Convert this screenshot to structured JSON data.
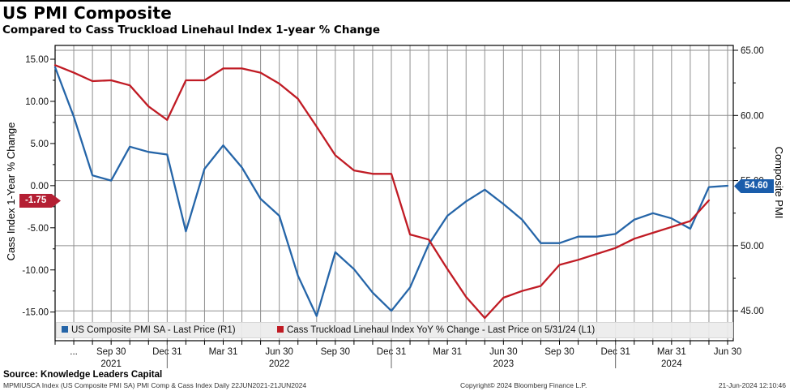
{
  "header": {
    "title": "US PMI Composite",
    "subtitle": "Compared to Cass Truckload Linehaul Index 1-year % Change"
  },
  "chart_data": {
    "type": "line",
    "x": [
      "Jun 2021",
      "Jul 2021",
      "Aug 2021",
      "Sep 2021",
      "Oct 2021",
      "Nov 2021",
      "Dec 2021",
      "Jan 2022",
      "Feb 2022",
      "Mar 2022",
      "Apr 2022",
      "May 2022",
      "Jun 2022",
      "Jul 2022",
      "Aug 2022",
      "Sep 2022",
      "Oct 2022",
      "Nov 2022",
      "Dec 2022",
      "Jan 2023",
      "Feb 2023",
      "Mar 2023",
      "Apr 2023",
      "May 2023",
      "Jun 2023",
      "Jul 2023",
      "Aug 2023",
      "Sep 2023",
      "Oct 2023",
      "Nov 2023",
      "Dec 2023",
      "Jan 2024",
      "Feb 2024",
      "Mar 2024",
      "Apr 2024",
      "May 2024",
      "Jun 2024"
    ],
    "series": [
      {
        "name": "US Composite PMI SA - Last Price (R1)",
        "axis": "right",
        "color": "#2565a8",
        "values": [
          63.7,
          59.9,
          55.4,
          55.0,
          57.6,
          57.2,
          57.0,
          51.1,
          55.9,
          57.7,
          56.0,
          53.6,
          52.3,
          47.7,
          44.6,
          49.5,
          48.2,
          46.4,
          45.0,
          46.8,
          50.1,
          52.3,
          53.4,
          54.3,
          53.2,
          52.0,
          50.2,
          50.2,
          50.7,
          50.7,
          50.9,
          52.0,
          52.5,
          52.1,
          51.3,
          54.5,
          54.6
        ]
      },
      {
        "name": "Cass Truckload Linehaul Index YoY % Change - Last Price on 5/31/24 (L1)",
        "axis": "left",
        "color": "#c01b24",
        "values": [
          14.3,
          13.4,
          12.4,
          12.5,
          11.9,
          9.4,
          7.8,
          12.5,
          12.5,
          13.9,
          13.9,
          13.4,
          12.1,
          10.3,
          7.0,
          3.6,
          1.8,
          1.4,
          1.4,
          -5.8,
          -6.4,
          -9.9,
          -13.2,
          -15.7,
          -13.3,
          -12.5,
          -11.9,
          -9.4,
          -8.8,
          -8.1,
          -7.4,
          -6.3,
          -5.6,
          -4.9,
          -4.2,
          -1.75
        ]
      }
    ],
    "left_axis": {
      "title": "Cass Index 1-Year % Change",
      "ticks": [
        {
          "value": 15,
          "label": "15.00"
        },
        {
          "value": 10,
          "label": "10.00"
        },
        {
          "value": 5,
          "label": "5.00"
        },
        {
          "value": 0,
          "label": "0.00"
        },
        {
          "value": -5,
          "label": "-5.00"
        },
        {
          "value": -10,
          "label": "-10.00"
        },
        {
          "value": -15,
          "label": "-15.00"
        }
      ],
      "minor_ticks": [
        12.5,
        7.5,
        2.5,
        -2.5,
        -7.5,
        -12.5
      ],
      "last_price_value": -1.75,
      "last_price_label": "-1.75",
      "badge_color": "#b41f33"
    },
    "right_axis": {
      "title": "Composite PMI",
      "ticks": [
        {
          "value": 65,
          "label": "65.00"
        },
        {
          "value": 60,
          "label": "60.00"
        },
        {
          "value": 55,
          "label": "55.00"
        },
        {
          "value": 50,
          "label": "50.00"
        },
        {
          "value": 45,
          "label": "45.00"
        }
      ],
      "minor_ticks": [
        62.5,
        57.5,
        52.5,
        47.5
      ],
      "last_price_value": 54.6,
      "last_price_label": "54.60",
      "badge_color": "#1a5dab"
    },
    "x_axis": {
      "ticks": [
        {
          "i": 1,
          "label": "..."
        },
        {
          "i": 3,
          "label": "Sep 30"
        },
        {
          "i": 6,
          "label": "Dec 31"
        },
        {
          "i": 9,
          "label": "Mar 31"
        },
        {
          "i": 12,
          "label": "Jun 30"
        },
        {
          "i": 15,
          "label": "Sep 30"
        },
        {
          "i": 18,
          "label": "Dec 31"
        },
        {
          "i": 21,
          "label": "Mar 31"
        },
        {
          "i": 24,
          "label": "Jun 30"
        },
        {
          "i": 27,
          "label": "Sep 30"
        },
        {
          "i": 30,
          "label": "Dec 31"
        },
        {
          "i": 33,
          "label": "Mar 31"
        },
        {
          "i": 36,
          "label": "Jun 30"
        }
      ],
      "years": [
        {
          "i": 3,
          "label": "2021"
        },
        {
          "i": 12,
          "label": "2022"
        },
        {
          "i": 24,
          "label": "2023"
        },
        {
          "i": 33,
          "label": "2024"
        }
      ],
      "separator_indices": [
        6,
        18,
        30
      ]
    },
    "grid": {
      "on": true,
      "color": "#8f8f8f"
    },
    "legend": {
      "position": "bottom"
    }
  },
  "footer": {
    "source": "Source: Knowledge Leaders Capital",
    "meta_left": "MPMIUSCA Index (US Composite PMI SA) PMI Comp & Cass Index  Daily 22JUN2021-21JUN2024",
    "meta_center": "Copyright© 2024 Bloomberg Finance L.P.",
    "meta_right": "21-Jun-2024 12:10:46"
  }
}
